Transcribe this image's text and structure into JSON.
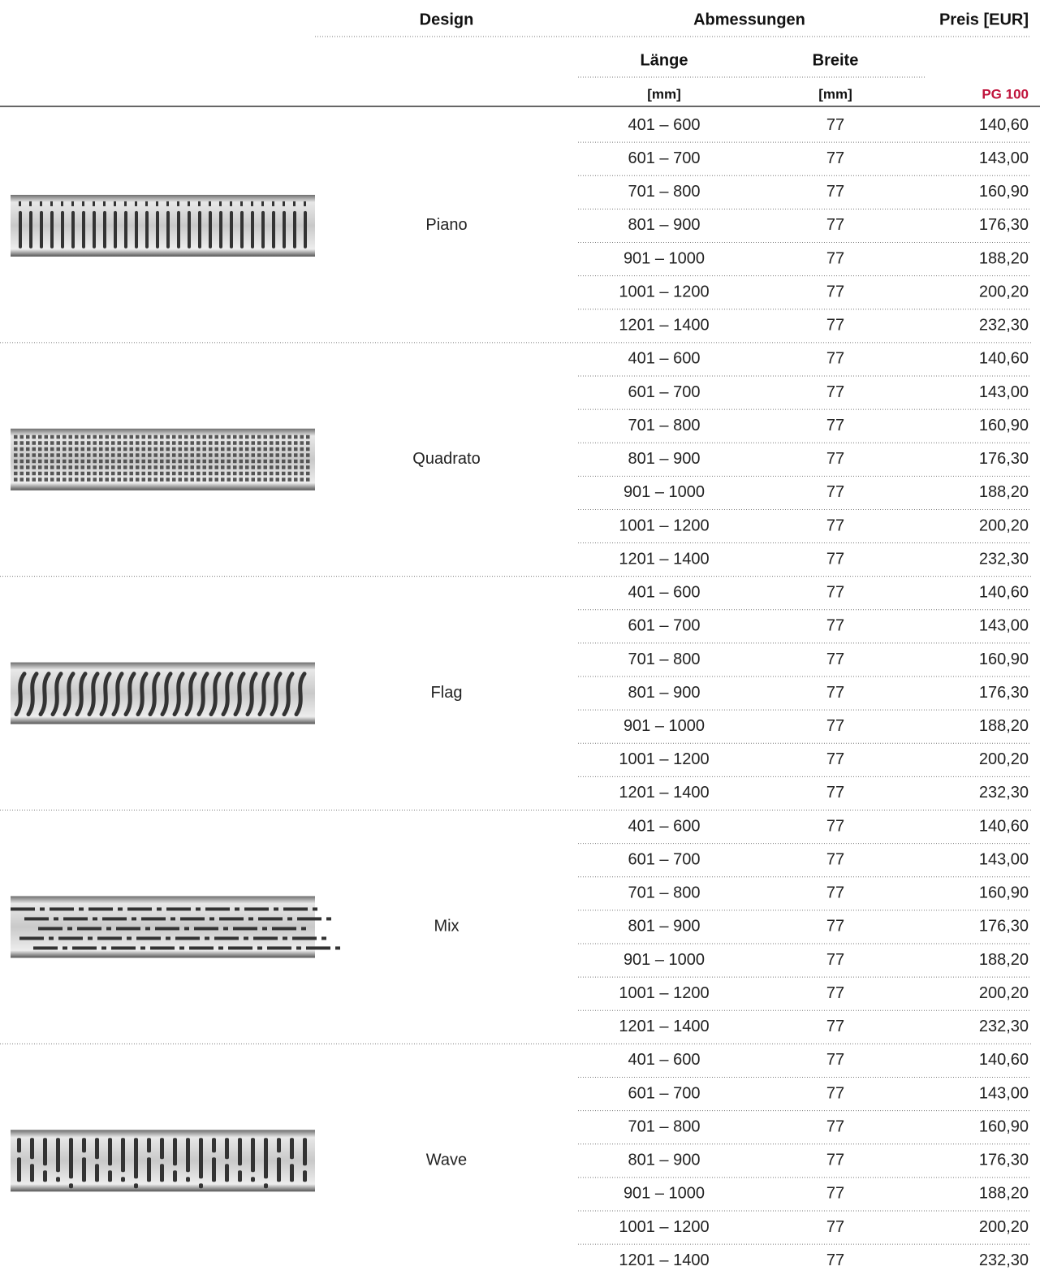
{
  "header": {
    "design": "Design",
    "dimensions": "Abmessungen",
    "price": "Preis [EUR]",
    "length": "Länge",
    "width": "Breite",
    "length_unit": "[mm]",
    "width_unit": "[mm]",
    "price_group": "PG 100"
  },
  "groups": [
    {
      "design": "Piano",
      "rows": [
        [
          "401 – 600",
          "77",
          "140,60"
        ],
        [
          "601 – 700",
          "77",
          "143,00"
        ],
        [
          "701 – 800",
          "77",
          "160,90"
        ],
        [
          "801 – 900",
          "77",
          "176,30"
        ],
        [
          "901 – 1000",
          "77",
          "188,20"
        ],
        [
          "1001 – 1200",
          "77",
          "200,20"
        ],
        [
          "1201 – 1400",
          "77",
          "232,30"
        ]
      ]
    },
    {
      "design": "Quadrato",
      "rows": [
        [
          "401 – 600",
          "77",
          "140,60"
        ],
        [
          "601 – 700",
          "77",
          "143,00"
        ],
        [
          "701 – 800",
          "77",
          "160,90"
        ],
        [
          "801 – 900",
          "77",
          "176,30"
        ],
        [
          "901 – 1000",
          "77",
          "188,20"
        ],
        [
          "1001 – 1200",
          "77",
          "200,20"
        ],
        [
          "1201 – 1400",
          "77",
          "232,30"
        ]
      ]
    },
    {
      "design": "Flag",
      "rows": [
        [
          "401 – 600",
          "77",
          "140,60"
        ],
        [
          "601 – 700",
          "77",
          "143,00"
        ],
        [
          "701 – 800",
          "77",
          "160,90"
        ],
        [
          "801 – 900",
          "77",
          "176,30"
        ],
        [
          "901 – 1000",
          "77",
          "188,20"
        ],
        [
          "1001 – 1200",
          "77",
          "200,20"
        ],
        [
          "1201 – 1400",
          "77",
          "232,30"
        ]
      ]
    },
    {
      "design": "Mix",
      "rows": [
        [
          "401 – 600",
          "77",
          "140,60"
        ],
        [
          "601 – 700",
          "77",
          "143,00"
        ],
        [
          "701 – 800",
          "77",
          "160,90"
        ],
        [
          "801 – 900",
          "77",
          "176,30"
        ],
        [
          "901 – 1000",
          "77",
          "188,20"
        ],
        [
          "1001 – 1200",
          "77",
          "200,20"
        ],
        [
          "1201 – 1400",
          "77",
          "232,30"
        ]
      ]
    },
    {
      "design": "Wave",
      "rows": [
        [
          "401 – 600",
          "77",
          "140,60"
        ],
        [
          "601 – 700",
          "77",
          "143,00"
        ],
        [
          "701 – 800",
          "77",
          "160,90"
        ],
        [
          "801 – 900",
          "77",
          "176,30"
        ],
        [
          "901 – 1000",
          "77",
          "188,20"
        ],
        [
          "1001 – 1200",
          "77",
          "200,20"
        ],
        [
          "1201 – 1400",
          "77",
          "232,30"
        ]
      ]
    }
  ]
}
